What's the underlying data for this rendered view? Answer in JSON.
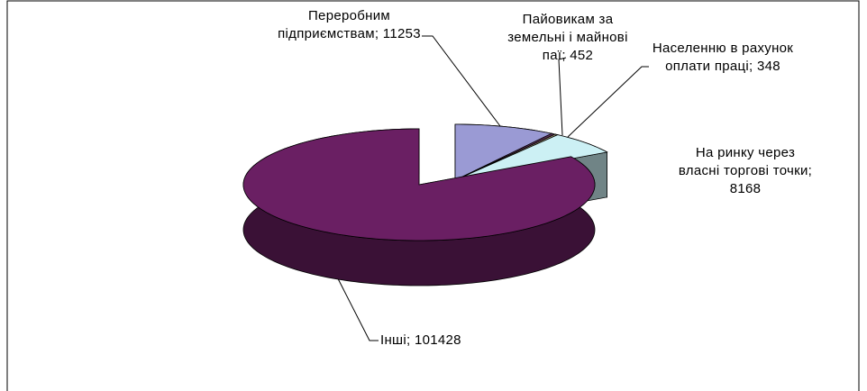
{
  "chart_data": {
    "type": "pie",
    "three_d": true,
    "values": [
      11253,
      452,
      348,
      8168,
      101428
    ],
    "value_labels": [
      "Переробним підприємствам; 11253",
      "Пайовикам за земельні і майнові паї; 452",
      "Населенню в рахунок оплати праці; 348",
      "На ринку через власні торгові точки; 8168",
      "Інші; 101428"
    ],
    "colors": [
      "#9a9ad4",
      "#5a2e55",
      "#a59a78",
      "#ccf0f4",
      "#6a1f63"
    ]
  }
}
